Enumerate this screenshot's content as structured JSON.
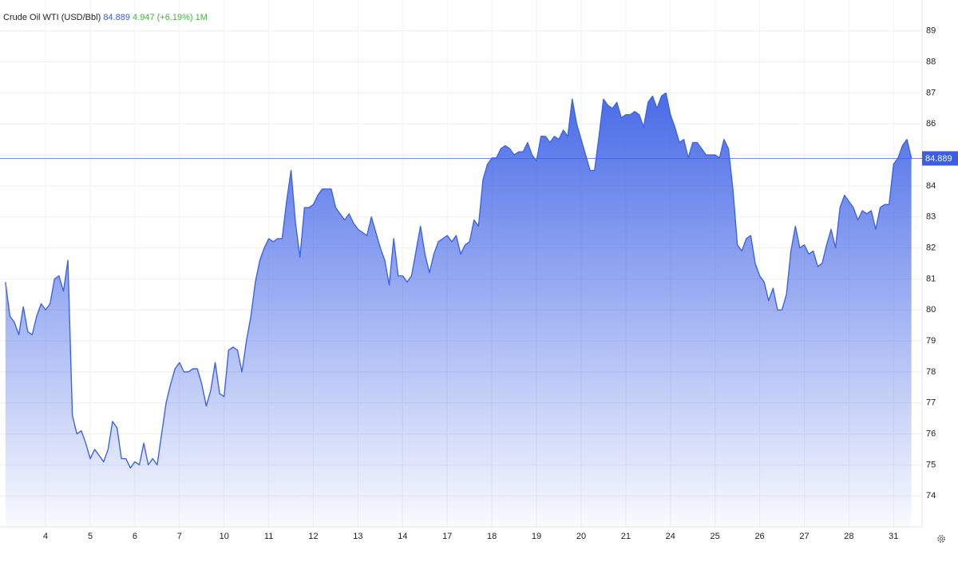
{
  "chart_data": {
    "type": "area",
    "title": "Crude Oil WTI (USD/Bbl)",
    "last_price": 84.889,
    "change": 4.947,
    "change_pct": "(+6.19%)",
    "period": "1M",
    "color": "#3f63e6",
    "price_color": "#3b5fe0",
    "change_color": "#3fb63f",
    "ylim": [
      73,
      90
    ],
    "yticks": [
      74,
      75,
      76,
      77,
      78,
      79,
      80,
      81,
      82,
      83,
      84,
      85,
      86,
      87,
      88,
      89
    ],
    "xlim": [
      -0.95,
      19.46
    ],
    "xticks": [
      {
        "value": 0,
        "label": "4"
      },
      {
        "value": 1,
        "label": "5"
      },
      {
        "value": 2,
        "label": "6"
      },
      {
        "value": 3,
        "label": "7"
      },
      {
        "value": 4,
        "label": "10"
      },
      {
        "value": 5,
        "label": "11"
      },
      {
        "value": 6,
        "label": "12"
      },
      {
        "value": 7,
        "label": "13"
      },
      {
        "value": 8,
        "label": "14"
      },
      {
        "value": 9,
        "label": "17"
      },
      {
        "value": 10,
        "label": "18"
      },
      {
        "value": 11,
        "label": "19"
      },
      {
        "value": 12,
        "label": "20"
      },
      {
        "value": 13,
        "label": "21"
      },
      {
        "value": 14,
        "label": "24"
      },
      {
        "value": 15,
        "label": "25"
      },
      {
        "value": 16,
        "label": "26"
      },
      {
        "value": 17,
        "label": "27"
      },
      {
        "value": 18,
        "label": "28"
      },
      {
        "value": 19,
        "label": "31"
      }
    ],
    "grid": true,
    "x": [
      -0.9,
      -0.8,
      -0.7,
      -0.6,
      -0.5,
      -0.4,
      -0.3,
      -0.2,
      -0.1,
      0,
      0.1,
      0.2,
      0.3,
      0.4,
      0.5,
      0.6,
      0.7,
      0.8,
      0.9,
      1,
      1.1,
      1.2,
      1.3,
      1.4,
      1.5,
      1.6,
      1.7,
      1.8,
      1.9,
      2,
      2.1,
      2.2,
      2.3,
      2.4,
      2.5,
      2.6,
      2.7,
      2.8,
      2.9,
      3,
      3.1,
      3.2,
      3.3,
      3.4,
      3.5,
      3.6,
      3.7,
      3.8,
      3.9,
      4,
      4.1,
      4.2,
      4.3,
      4.4,
      4.5,
      4.6,
      4.7,
      4.8,
      4.9,
      5,
      5.1,
      5.2,
      5.3,
      5.4,
      5.5,
      5.6,
      5.7,
      5.8,
      5.9,
      6,
      6.1,
      6.2,
      6.3,
      6.4,
      6.5,
      6.6,
      6.7,
      6.8,
      6.9,
      7,
      7.1,
      7.2,
      7.3,
      7.4,
      7.5,
      7.6,
      7.7,
      7.8,
      7.9,
      8,
      8.1,
      8.2,
      8.3,
      8.4,
      8.5,
      8.6,
      8.7,
      8.8,
      8.9,
      9,
      9.1,
      9.2,
      9.3,
      9.4,
      9.5,
      9.6,
      9.7,
      9.8,
      9.9,
      10,
      10.1,
      10.2,
      10.3,
      10.4,
      10.5,
      10.6,
      10.7,
      10.8,
      10.9,
      11,
      11.1,
      11.2,
      11.3,
      11.4,
      11.5,
      11.6,
      11.7,
      11.8,
      11.9,
      12,
      12.1,
      12.2,
      12.3,
      12.4,
      12.5,
      12.6,
      12.7,
      12.8,
      12.9,
      13,
      13.1,
      13.2,
      13.3,
      13.4,
      13.5,
      13.6,
      13.7,
      13.8,
      13.9,
      14,
      14.1,
      14.2,
      14.3,
      14.4,
      14.5,
      14.6,
      14.7,
      14.8,
      14.9,
      15,
      15.1,
      15.2,
      15.3,
      15.4,
      15.5,
      15.6,
      15.7,
      15.8,
      15.9,
      16,
      16.1,
      16.2,
      16.3,
      16.4,
      16.5,
      16.6,
      16.7,
      16.8,
      16.9,
      17,
      17.1,
      17.2,
      17.3,
      17.4,
      17.5,
      17.6,
      17.7,
      17.8,
      17.9,
      18,
      18.1,
      18.2,
      18.3,
      18.4,
      18.5,
      18.6,
      18.7,
      18.8,
      18.9,
      19,
      19.1,
      19.2,
      19.3,
      19.4
    ],
    "values": [
      80.9,
      79.8,
      79.6,
      79.2,
      80.1,
      79.3,
      79.2,
      79.8,
      80.2,
      80.0,
      80.2,
      81.0,
      81.1,
      80.6,
      81.6,
      76.6,
      76.0,
      76.1,
      75.7,
      75.2,
      75.5,
      75.3,
      75.1,
      75.5,
      76.4,
      76.2,
      75.2,
      75.2,
      74.9,
      75.1,
      75.0,
      75.7,
      75.0,
      75.2,
      75.0,
      76.0,
      77.0,
      77.6,
      78.1,
      78.3,
      78.0,
      78.0,
      78.1,
      78.1,
      77.6,
      76.9,
      77.4,
      78.3,
      77.3,
      77.2,
      78.7,
      78.8,
      78.7,
      78.0,
      79.0,
      79.8,
      80.9,
      81.6,
      82.0,
      82.3,
      82.2,
      82.3,
      82.3,
      83.5,
      84.5,
      82.8,
      81.7,
      83.3,
      83.3,
      83.4,
      83.7,
      83.9,
      83.9,
      83.9,
      83.3,
      83.1,
      82.9,
      83.1,
      82.8,
      82.6,
      82.5,
      82.4,
      83.0,
      82.5,
      82.0,
      81.6,
      80.8,
      82.3,
      81.1,
      81.1,
      80.9,
      81.1,
      81.9,
      82.7,
      81.8,
      81.2,
      81.8,
      82.2,
      82.3,
      82.4,
      82.2,
      82.4,
      81.8,
      82.1,
      82.2,
      82.9,
      82.7,
      84.2,
      84.7,
      84.9,
      84.9,
      85.2,
      85.3,
      85.2,
      85.0,
      85.1,
      85.1,
      85.4,
      85.0,
      84.8,
      85.6,
      85.6,
      85.4,
      85.6,
      85.5,
      85.8,
      85.6,
      86.8,
      86.0,
      85.5,
      85.0,
      84.5,
      84.5,
      85.6,
      86.8,
      86.6,
      86.5,
      86.7,
      86.2,
      86.3,
      86.3,
      86.4,
      86.3,
      85.9,
      86.7,
      86.9,
      86.5,
      86.9,
      87.0,
      86.3,
      85.9,
      85.4,
      85.5,
      84.9,
      85.4,
      85.4,
      85.2,
      85.0,
      85.0,
      85.0,
      84.9,
      85.5,
      85.2,
      83.9,
      82.1,
      81.9,
      82.3,
      82.4,
      81.5,
      81.1,
      80.9,
      80.3,
      80.7,
      80.0,
      80.0,
      80.5,
      81.9,
      82.7,
      82.0,
      82.1,
      81.8,
      81.9,
      81.4,
      81.5,
      82.1,
      82.6,
      82.0,
      83.3,
      83.7,
      83.5,
      83.3,
      82.9,
      83.2,
      83.1,
      83.2,
      82.6,
      83.3,
      83.4,
      83.4,
      84.7,
      84.9,
      85.3,
      85.5,
      84.889
    ]
  }
}
